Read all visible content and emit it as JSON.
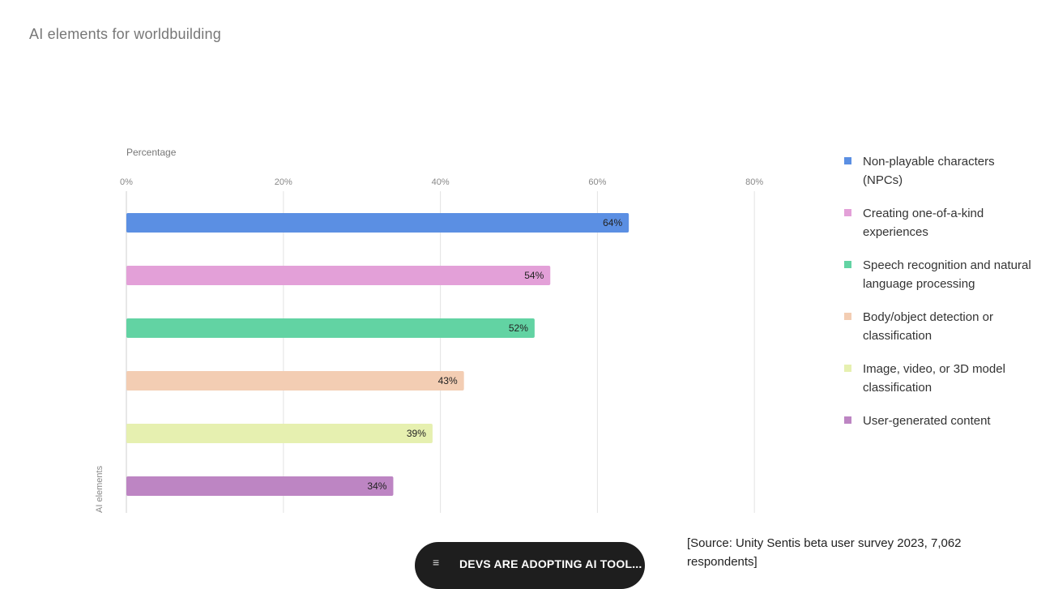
{
  "page": {
    "title": "AI elements for worldbuilding",
    "source": "[Source: Unity Sentis beta user survey 2023, 7,062 respondents]",
    "story_button": {
      "icon": "≡",
      "label": "DEVS ARE ADOPTING AI TOOL..."
    }
  },
  "chart_data": {
    "type": "bar",
    "orientation": "horizontal",
    "title": "AI elements for worldbuilding",
    "xlabel": "Percentage",
    "ylabel": "AI elements",
    "xlim": [
      0,
      80
    ],
    "ticks": [
      "0%",
      "20%",
      "40%",
      "60%",
      "80%"
    ],
    "tick_values": [
      0,
      20,
      40,
      60,
      80
    ],
    "grid": true,
    "legend_position": "right",
    "categories": [
      "Non-playable characters (NPCs)",
      "Creating one-of-a-kind experiences",
      "Speech recognition and natural language processing",
      "Body/object detection or classification",
      "Image, video, or 3D model classification",
      "User-generated content"
    ],
    "values": [
      64,
      54,
      52,
      43,
      39,
      34
    ],
    "value_labels": [
      "64%",
      "54%",
      "52%",
      "43%",
      "39%",
      "34%"
    ],
    "colors": [
      "#5b8fe3",
      "#e3a0d8",
      "#62d3a3",
      "#f3cdb3",
      "#e6f0b0",
      "#bd85c3"
    ]
  }
}
